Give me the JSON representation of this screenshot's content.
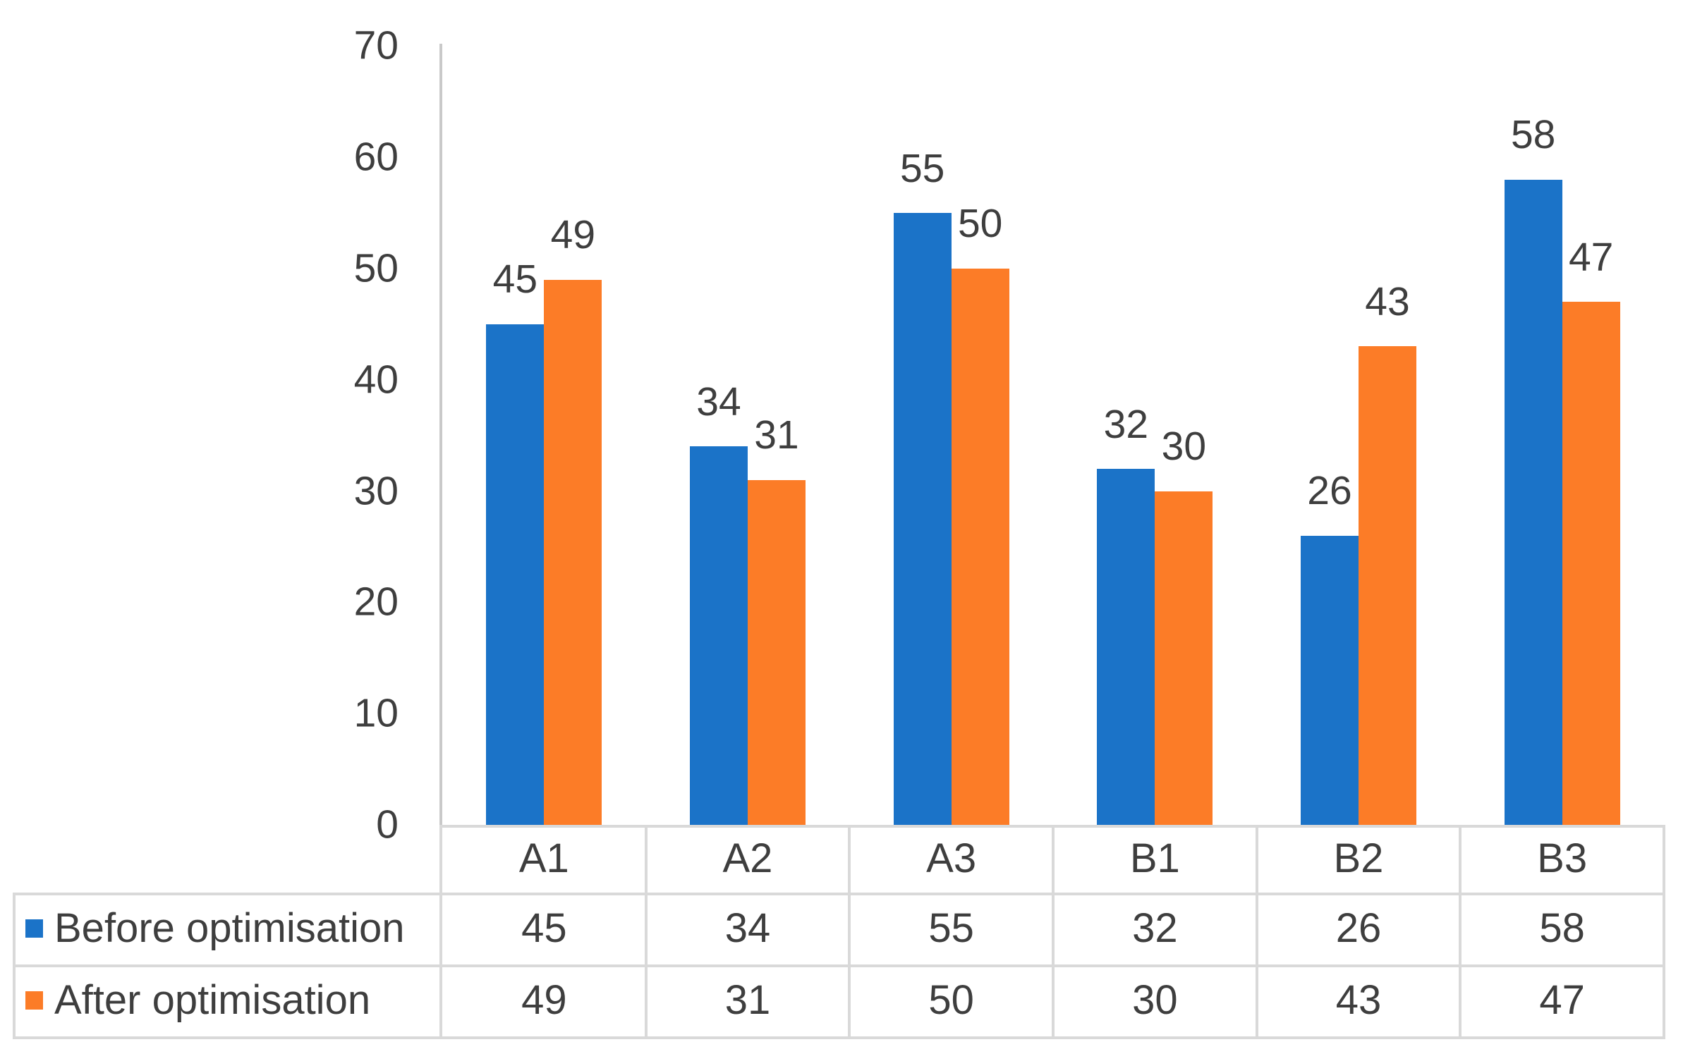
{
  "chart_data": {
    "type": "bar",
    "title": "",
    "xlabel": "",
    "ylabel": "",
    "categories": [
      "A1",
      "A2",
      "A3",
      "B1",
      "B2",
      "B3"
    ],
    "series": [
      {
        "name": "Before optimisation",
        "color": "#1B73C8",
        "values": [
          45,
          34,
          55,
          32,
          26,
          58
        ]
      },
      {
        "name": "After optimisation",
        "color": "#FC7C27",
        "values": [
          49,
          31,
          50,
          30,
          43,
          47
        ]
      }
    ],
    "ylim": [
      0,
      70
    ],
    "yticks": [
      0,
      10,
      20,
      30,
      40,
      50,
      60,
      70
    ],
    "grid": false,
    "data_labels": true,
    "legend_position": "data-table-left-column"
  },
  "styles": {
    "background": "#FFFFFF",
    "text_color": "#3E3E3E",
    "axis_line_color": "#C9C9C9",
    "table_border_color": "#D9D9D9"
  }
}
